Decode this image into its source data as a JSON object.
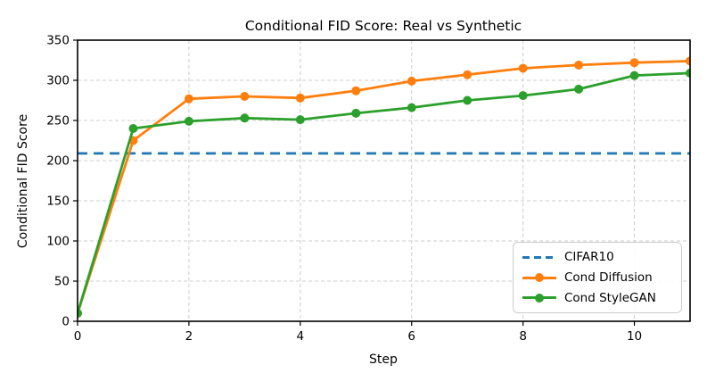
{
  "chart_data": {
    "type": "line",
    "title": "Conditional FID Score: Real vs Synthetic",
    "xlabel": "Step",
    "ylabel": "Conditional FID Score",
    "xlim": [
      0,
      11
    ],
    "ylim": [
      0,
      350
    ],
    "xticks": [
      0,
      2,
      4,
      6,
      8,
      10
    ],
    "yticks": [
      0,
      50,
      100,
      150,
      200,
      250,
      300,
      350
    ],
    "grid": true,
    "grid_color": "#cccccc",
    "legend_position": "lower right",
    "x": [
      0,
      1,
      2,
      3,
      4,
      5,
      6,
      7,
      8,
      9,
      10,
      11
    ],
    "series": [
      {
        "name": "CIFAR10",
        "type": "hline",
        "value": 209,
        "color": "#1f77b4",
        "style": "dashed"
      },
      {
        "name": "Cond Diffusion",
        "type": "line-markers",
        "color": "#ff7f0e",
        "style": "solid",
        "values": [
          10,
          225,
          277,
          280,
          278,
          287,
          299,
          307,
          315,
          319,
          322,
          324
        ]
      },
      {
        "name": "Cond StyleGAN",
        "type": "line-markers",
        "color": "#2ca02c",
        "style": "solid",
        "values": [
          10,
          240,
          249,
          253,
          251,
          259,
          266,
          275,
          281,
          289,
          306,
          309
        ]
      }
    ]
  }
}
